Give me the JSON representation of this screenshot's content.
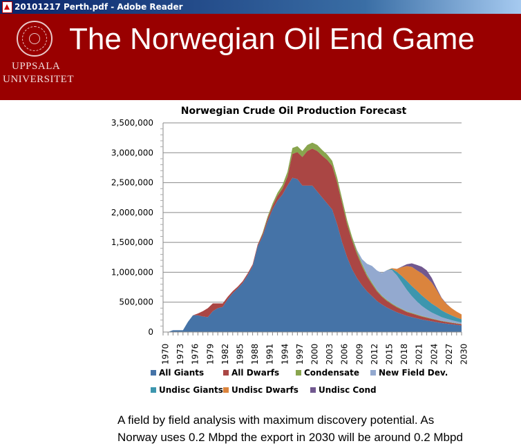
{
  "window": {
    "title": "20101217 Perth.pdf - Adobe Reader"
  },
  "slide": {
    "title": "The Norwegian Oil End Game",
    "logo_line1": "UPPSALA",
    "logo_line2": "UNIVERSITET",
    "caption_line1": "A field by field analysis with maximum discovery potential. As",
    "caption_line2": "Norway uses 0.2 Mbpd the export in 2030 will be around 0.2 Mbpd"
  },
  "chart_data": {
    "type": "area",
    "stacked": true,
    "title": "Norwegian Crude Oil Production Forecast",
    "xlabel": "",
    "ylabel": "",
    "ylim": [
      0,
      3500000
    ],
    "xlim": [
      1970,
      2030
    ],
    "grid": true,
    "legend_position": "bottom",
    "yticks": [
      "0",
      "500,000",
      "1,000,000",
      "1,500,000",
      "2,000,000",
      "2,500,000",
      "3,000,000",
      "3,500,000"
    ],
    "xtick_step": 3,
    "series": [
      {
        "name": "All Giants",
        "color": "#4573A7",
        "start": 1970,
        "values": [
          0,
          0,
          30000,
          30000,
          30000,
          170000,
          280000,
          280000,
          260000,
          250000,
          350000,
          400000,
          420000,
          550000,
          650000,
          730000,
          820000,
          950000,
          1100000,
          1430000,
          1600000,
          1850000,
          2050000,
          2200000,
          2300000,
          2450000,
          2580000,
          2560000,
          2450000,
          2450000,
          2450000,
          2350000,
          2250000,
          2150000,
          2050000,
          1800000,
          1500000,
          1250000,
          1050000,
          900000,
          780000,
          680000,
          600000,
          520000,
          460000,
          410000,
          370000,
          330000,
          300000,
          270000,
          250000,
          230000,
          210000,
          195000,
          180000,
          165000,
          150000,
          140000,
          130000,
          120000,
          110000
        ]
      },
      {
        "name": "All Dwarfs",
        "color": "#AA4644",
        "start": 1970,
        "values": [
          0,
          0,
          0,
          0,
          0,
          0,
          0,
          30000,
          90000,
          150000,
          130000,
          80000,
          60000,
          40000,
          35000,
          30000,
          30000,
          30000,
          30000,
          30000,
          40000,
          50000,
          60000,
          80000,
          100000,
          150000,
          400000,
          450000,
          480000,
          580000,
          620000,
          680000,
          700000,
          730000,
          730000,
          700000,
          650000,
          550000,
          480000,
          400000,
          320000,
          250000,
          200000,
          160000,
          130000,
          110000,
          95000,
          85000,
          75000,
          65000,
          60000,
          55000,
          50000,
          45000,
          40000,
          36000,
          32000,
          28000,
          25000,
          22000,
          20000
        ]
      },
      {
        "name": "Condensate",
        "color": "#89A54E",
        "start": 1970,
        "values": [
          0,
          0,
          0,
          0,
          0,
          0,
          0,
          0,
          0,
          0,
          0,
          0,
          0,
          0,
          0,
          0,
          0,
          0,
          0,
          0,
          20000,
          30000,
          40000,
          50000,
          60000,
          80000,
          100000,
          100000,
          100000,
          100000,
          100000,
          100000,
          95000,
          90000,
          85000,
          80000,
          75000,
          70000,
          60000,
          50000,
          40000,
          32000,
          26000,
          20000,
          17000,
          15000,
          13000,
          12000,
          11000,
          10000,
          10000,
          9000,
          8000,
          8000,
          7000,
          7000,
          6000,
          6000,
          5000,
          5000,
          5000
        ]
      },
      {
        "name": "New Field Dev.",
        "color": "#93A9CF",
        "start": 1970,
        "values": [
          0,
          0,
          0,
          0,
          0,
          0,
          0,
          0,
          0,
          0,
          0,
          0,
          0,
          0,
          0,
          0,
          0,
          0,
          0,
          0,
          0,
          0,
          0,
          0,
          0,
          0,
          0,
          0,
          0,
          0,
          0,
          0,
          0,
          0,
          0,
          0,
          0,
          0,
          0,
          20000,
          80000,
          180000,
          280000,
          330000,
          380000,
          500000,
          560000,
          520000,
          440000,
          360000,
          280000,
          220000,
          170000,
          130000,
          100000,
          80000,
          60000,
          48000,
          38000,
          30000,
          24000
        ]
      },
      {
        "name": "Undisc Giants",
        "color": "#3D96AE",
        "start": 1970,
        "values": [
          0,
          0,
          0,
          0,
          0,
          0,
          0,
          0,
          0,
          0,
          0,
          0,
          0,
          0,
          0,
          0,
          0,
          0,
          0,
          0,
          0,
          0,
          0,
          0,
          0,
          0,
          0,
          0,
          0,
          0,
          0,
          0,
          0,
          0,
          0,
          0,
          0,
          0,
          0,
          0,
          0,
          0,
          0,
          0,
          0,
          0,
          20000,
          60000,
          110000,
          150000,
          170000,
          180000,
          175000,
          165000,
          150000,
          135000,
          115000,
          95000,
          80000,
          65000,
          55000
        ]
      },
      {
        "name": "Undisc Dwarfs",
        "color": "#DB843D",
        "start": 1970,
        "values": [
          0,
          0,
          0,
          0,
          0,
          0,
          0,
          0,
          0,
          0,
          0,
          0,
          0,
          0,
          0,
          0,
          0,
          0,
          0,
          0,
          0,
          0,
          0,
          0,
          0,
          0,
          0,
          0,
          0,
          0,
          0,
          0,
          0,
          0,
          0,
          0,
          0,
          0,
          0,
          0,
          0,
          0,
          0,
          0,
          0,
          0,
          10000,
          50000,
          150000,
          250000,
          320000,
          340000,
          370000,
          370000,
          350000,
          280000,
          200000,
          150000,
          120000,
          100000,
          80000
        ]
      },
      {
        "name": "Undisc Cond",
        "color": "#71588F",
        "start": 1970,
        "values": [
          0,
          0,
          0,
          0,
          0,
          0,
          0,
          0,
          0,
          0,
          0,
          0,
          0,
          0,
          0,
          0,
          0,
          0,
          0,
          0,
          0,
          0,
          0,
          0,
          0,
          0,
          0,
          0,
          0,
          0,
          0,
          0,
          0,
          0,
          0,
          0,
          0,
          0,
          0,
          0,
          0,
          0,
          0,
          0,
          0,
          0,
          0,
          0,
          10000,
          30000,
          60000,
          90000,
          110000,
          120000,
          80000,
          30000,
          10000,
          5000,
          0,
          0,
          0
        ]
      }
    ]
  }
}
